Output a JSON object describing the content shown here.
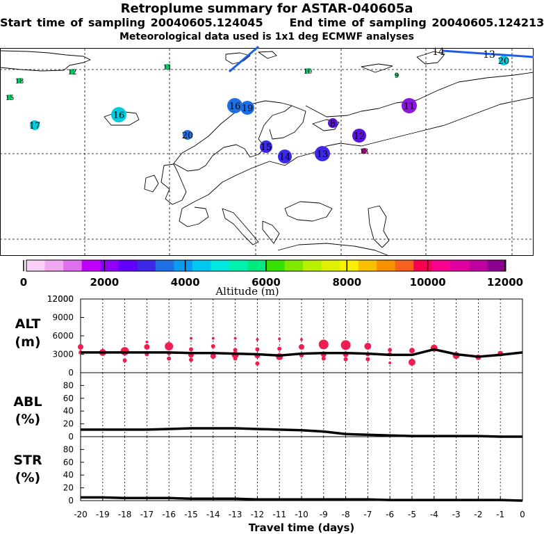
{
  "header": {
    "title": "Retroplume summary for ASTAR-040605a",
    "start_label": "Start time of sampling 20040605.124045",
    "end_label": "End time of sampling 20040605.124213",
    "met_label": "Meteorological data used is 1x1 deg ECMWF analyses"
  },
  "map": {
    "cluster_labels": [
      {
        "label": "18",
        "color": "#00cc66"
      },
      {
        "label": "15",
        "color": "#00cc66"
      },
      {
        "label": "12",
        "color": "#00cc66"
      },
      {
        "label": "11",
        "color": "#00cc66"
      },
      {
        "label": "10",
        "color": "#00cc66"
      },
      {
        "label": "9",
        "color": "#00cc66"
      },
      {
        "label": "17",
        "color": "#00ccdd"
      },
      {
        "label": "16",
        "color": "#00ccdd"
      },
      {
        "label": "20",
        "color": "#1e6fe6"
      },
      {
        "label": "16",
        "color": "#1e6fe6"
      },
      {
        "label": "19",
        "color": "#1e6fe6"
      },
      {
        "label": "15",
        "color": "#3c28e6"
      },
      {
        "label": "14",
        "color": "#3c28e6"
      },
      {
        "label": "13",
        "color": "#3c28e6"
      },
      {
        "label": "12",
        "color": "#5a14dc"
      },
      {
        "label": "8",
        "color": "#5a14dc"
      },
      {
        "label": "11",
        "color": "#8c14dc"
      },
      {
        "label": "13",
        "color": "#a00078"
      },
      {
        "label": "14",
        "color": "#000000"
      },
      {
        "label": "13",
        "color": "#000000"
      },
      {
        "label": "20",
        "color": "#00ccdd"
      }
    ]
  },
  "colorbar": {
    "tick_labels": [
      "0",
      "2000",
      "4000",
      "6000",
      "8000",
      "10000",
      "12000"
    ],
    "title": "Altitude (m)",
    "colors": [
      "#f8d0f8",
      "#f0a8f0",
      "#e070f0",
      "#c000f8",
      "#9000f8",
      "#6000f8",
      "#3c28e6",
      "#1e6fe6",
      "#0a9cf0",
      "#00c8f0",
      "#00e8e0",
      "#00f0b0",
      "#00e880",
      "#38e000",
      "#80e800",
      "#b8f000",
      "#e0f000",
      "#f8f000",
      "#f8c000",
      "#f89000",
      "#f86020",
      "#f80050",
      "#f80090",
      "#e000a0",
      "#c000a0",
      "#8c0090"
    ]
  },
  "chart_data": [
    {
      "type": "line",
      "name": "ALT",
      "ylabel": "ALT (m)",
      "ylim": [
        0,
        12000
      ],
      "yticks": [
        0,
        3000,
        6000,
        9000,
        12000
      ],
      "x": [
        -20,
        -19,
        -18,
        -17,
        -16,
        -15,
        -14,
        -13,
        -12,
        -11,
        -10,
        -9,
        -8,
        -7,
        -6,
        -5,
        -4,
        -3,
        -2,
        -1,
        0
      ],
      "values": [
        3300,
        3300,
        3300,
        3300,
        3300,
        3200,
        3200,
        3100,
        3000,
        2800,
        3100,
        3200,
        3200,
        3100,
        2900,
        2900,
        3800,
        3000,
        2600,
        2900,
        3300
      ],
      "scatter": [
        {
          "x": -20,
          "y": 4200,
          "s": 4
        },
        {
          "x": -20,
          "y": 3300,
          "s": 3
        },
        {
          "x": -19,
          "y": 3300,
          "s": 5
        },
        {
          "x": -18,
          "y": 3500,
          "s": 6
        },
        {
          "x": -18,
          "y": 2000,
          "s": 3
        },
        {
          "x": -17,
          "y": 5000,
          "s": 2
        },
        {
          "x": -17,
          "y": 4200,
          "s": 4
        },
        {
          "x": -17,
          "y": 3000,
          "s": 3
        },
        {
          "x": -16,
          "y": 4300,
          "s": 6
        },
        {
          "x": -16,
          "y": 3200,
          "s": 3
        },
        {
          "x": -16,
          "y": 2300,
          "s": 3
        },
        {
          "x": -15,
          "y": 5600,
          "s": 2
        },
        {
          "x": -15,
          "y": 3800,
          "s": 3
        },
        {
          "x": -15,
          "y": 2900,
          "s": 4
        },
        {
          "x": -15,
          "y": 2100,
          "s": 3
        },
        {
          "x": -14,
          "y": 5600,
          "s": 2
        },
        {
          "x": -14,
          "y": 4300,
          "s": 3
        },
        {
          "x": -14,
          "y": 2700,
          "s": 4
        },
        {
          "x": -13,
          "y": 5600,
          "s": 2
        },
        {
          "x": -13,
          "y": 3700,
          "s": 3
        },
        {
          "x": -13,
          "y": 2900,
          "s": 5
        },
        {
          "x": -13,
          "y": 2300,
          "s": 3
        },
        {
          "x": -12,
          "y": 5400,
          "s": 2
        },
        {
          "x": -12,
          "y": 3800,
          "s": 3
        },
        {
          "x": -12,
          "y": 2800,
          "s": 4
        },
        {
          "x": -12,
          "y": 1500,
          "s": 3
        },
        {
          "x": -11,
          "y": 5500,
          "s": 2
        },
        {
          "x": -11,
          "y": 3900,
          "s": 3
        },
        {
          "x": -11,
          "y": 2600,
          "s": 5
        },
        {
          "x": -10,
          "y": 5400,
          "s": 2
        },
        {
          "x": -10,
          "y": 4200,
          "s": 4
        },
        {
          "x": -10,
          "y": 2800,
          "s": 3
        },
        {
          "x": -9,
          "y": 4600,
          "s": 7
        },
        {
          "x": -9,
          "y": 3000,
          "s": 4
        },
        {
          "x": -9,
          "y": 2300,
          "s": 3
        },
        {
          "x": -8,
          "y": 4500,
          "s": 7
        },
        {
          "x": -8,
          "y": 3000,
          "s": 4
        },
        {
          "x": -8,
          "y": 2200,
          "s": 3
        },
        {
          "x": -7,
          "y": 4300,
          "s": 5
        },
        {
          "x": -7,
          "y": 3000,
          "s": 3
        },
        {
          "x": -7,
          "y": 2200,
          "s": 3
        },
        {
          "x": -6,
          "y": 3700,
          "s": 3
        },
        {
          "x": -6,
          "y": 3000,
          "s": 3
        },
        {
          "x": -6,
          "y": 1600,
          "s": 2
        },
        {
          "x": -5,
          "y": 3600,
          "s": 4
        },
        {
          "x": -5,
          "y": 1700,
          "s": 5
        },
        {
          "x": -4,
          "y": 4000,
          "s": 5
        },
        {
          "x": -3,
          "y": 2800,
          "s": 5
        },
        {
          "x": -2,
          "y": 2500,
          "s": 4
        },
        {
          "x": -1,
          "y": 3100,
          "s": 4
        }
      ]
    },
    {
      "type": "line",
      "name": "ABL",
      "ylabel": "ABL (%)",
      "ylim": [
        0,
        100
      ],
      "yticks": [
        0,
        20,
        40,
        60,
        80
      ],
      "x": [
        -20,
        -19,
        -18,
        -17,
        -16,
        -15,
        -14,
        -13,
        -12,
        -11,
        -10,
        -9,
        -8,
        -7,
        -6,
        -5,
        -4,
        -3,
        -2,
        -1,
        0
      ],
      "values": [
        11,
        11,
        11,
        11,
        12,
        13,
        13,
        13,
        12,
        11,
        10,
        8,
        4,
        3,
        2,
        1,
        1,
        1,
        1,
        0,
        0
      ]
    },
    {
      "type": "line",
      "name": "STR",
      "ylabel": "STR (%)",
      "ylim": [
        0,
        100
      ],
      "yticks": [
        0,
        20,
        40,
        60,
        80
      ],
      "xlabel": "Travel time (days)",
      "x": [
        -20,
        -19,
        -18,
        -17,
        -16,
        -15,
        -14,
        -13,
        -12,
        -11,
        -10,
        -9,
        -8,
        -7,
        -6,
        -5,
        -4,
        -3,
        -2,
        -1,
        0
      ],
      "values": [
        5,
        5,
        4,
        4,
        4,
        3,
        3,
        3,
        2,
        2,
        2,
        2,
        2,
        2,
        1,
        1,
        1,
        1,
        1,
        1,
        0
      ]
    }
  ],
  "x_tick_labels": [
    "-20",
    "-19",
    "-18",
    "-17",
    "-16",
    "-15",
    "-14",
    "-13",
    "-12",
    "-11",
    "-10",
    "-9",
    "-8",
    "-7",
    "-6",
    "-5",
    "-4",
    "-3",
    "-2",
    "-1",
    "0"
  ]
}
